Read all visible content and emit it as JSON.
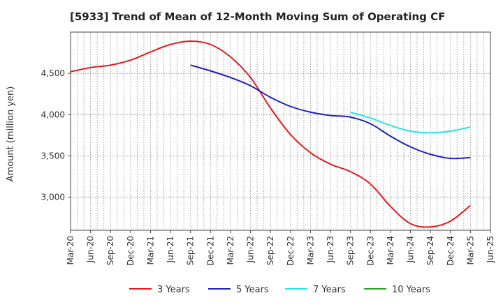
{
  "chart_data": {
    "type": "line",
    "title": "[5933]  Trend of Mean of 12-Month Moving Sum of Operating CF",
    "xlabel": "",
    "ylabel": "Amount (million yen)",
    "grid": true,
    "legend_position": "bottom",
    "ylim": [
      2600,
      5000
    ],
    "y_ticks": [
      3000,
      3500,
      4000,
      4500
    ],
    "y_tick_labels": [
      "3,000",
      "3,500",
      "4,000",
      "4,500"
    ],
    "x_ticks": [
      "Mar-20",
      "Jun-20",
      "Sep-20",
      "Dec-20",
      "Mar-21",
      "Jun-21",
      "Sep-21",
      "Dec-21",
      "Mar-22",
      "Jun-22",
      "Sep-22",
      "Dec-22",
      "Mar-23",
      "Jun-23",
      "Sep-23",
      "Dec-23",
      "Mar-24",
      "Jun-24",
      "Sep-24",
      "Dec-24",
      "Mar-25",
      "Jun-25"
    ],
    "series": [
      {
        "name": "3 Years",
        "color": "#e31a1c",
        "x": [
          "Mar-20",
          "Jun-20",
          "Sep-20",
          "Dec-20",
          "Mar-21",
          "Jun-21",
          "Sep-21",
          "Dec-21",
          "Mar-22",
          "Jun-22",
          "Sep-22",
          "Dec-22",
          "Mar-23",
          "Jun-23",
          "Sep-23",
          "Dec-23",
          "Mar-24",
          "Jun-24",
          "Sep-24",
          "Dec-24",
          "Mar-25"
        ],
        "values": [
          4520,
          4570,
          4600,
          4660,
          4760,
          4850,
          4890,
          4850,
          4700,
          4450,
          4080,
          3760,
          3540,
          3400,
          3310,
          3160,
          2890,
          2680,
          2640,
          2710,
          2900
        ]
      },
      {
        "name": "5 Years",
        "color": "#1f1fbf",
        "x": [
          "Sep-21",
          "Dec-21",
          "Mar-22",
          "Jun-22",
          "Sep-22",
          "Dec-22",
          "Mar-23",
          "Jun-23",
          "Sep-23",
          "Dec-23",
          "Mar-24",
          "Jun-24",
          "Sep-24",
          "Dec-24",
          "Mar-25"
        ],
        "values": [
          4600,
          4530,
          4450,
          4350,
          4210,
          4100,
          4030,
          3990,
          3970,
          3890,
          3740,
          3610,
          3520,
          3470,
          3480
        ]
      },
      {
        "name": "7 Years",
        "color": "#22e5e5",
        "x": [
          "Sep-23",
          "Dec-23",
          "Mar-24",
          "Jun-24",
          "Sep-24",
          "Dec-24",
          "Mar-25"
        ],
        "values": [
          4030,
          3960,
          3870,
          3800,
          3780,
          3800,
          3850
        ]
      },
      {
        "name": "10 Years",
        "color": "#2ca02c",
        "x": [],
        "values": []
      }
    ]
  }
}
